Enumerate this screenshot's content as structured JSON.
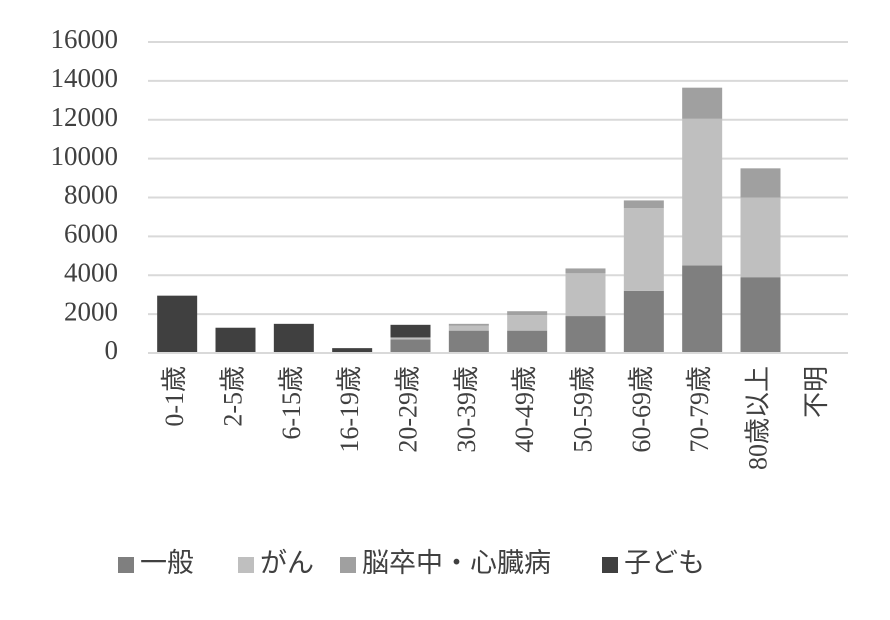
{
  "chart_data": {
    "type": "stacked_bar",
    "categories": [
      "0-1歳",
      "2-5歳",
      "6-15歳",
      "16-19歳",
      "20-29歳",
      "30-39歳",
      "40-49歳",
      "50-59歳",
      "60-69歳",
      "70-79歳",
      "80歳以上",
      "不明"
    ],
    "series": [
      {
        "name": "一般",
        "color": "#7f7f7f",
        "values": [
          0,
          0,
          0,
          0,
          700,
          1150,
          1150,
          1900,
          3200,
          4500,
          3900,
          50
        ]
      },
      {
        "name": "がん",
        "color": "#bfbfbf",
        "values": [
          0,
          0,
          0,
          0,
          100,
          250,
          800,
          2200,
          4250,
          7550,
          4100,
          0
        ]
      },
      {
        "name": "脳卒中・心臓病",
        "color": "#a0a0a0",
        "values": [
          0,
          0,
          0,
          0,
          0,
          100,
          200,
          250,
          400,
          1600,
          1500,
          0
        ]
      },
      {
        "name": "子ども",
        "color": "#404040",
        "values": [
          2950,
          1300,
          1500,
          250,
          650,
          0,
          0,
          0,
          0,
          0,
          0,
          0
        ]
      }
    ],
    "ylim": [
      0,
      16000
    ],
    "yticks": [
      0,
      2000,
      4000,
      6000,
      8000,
      10000,
      12000,
      14000,
      16000
    ],
    "grid": true,
    "legend": "bottom"
  }
}
